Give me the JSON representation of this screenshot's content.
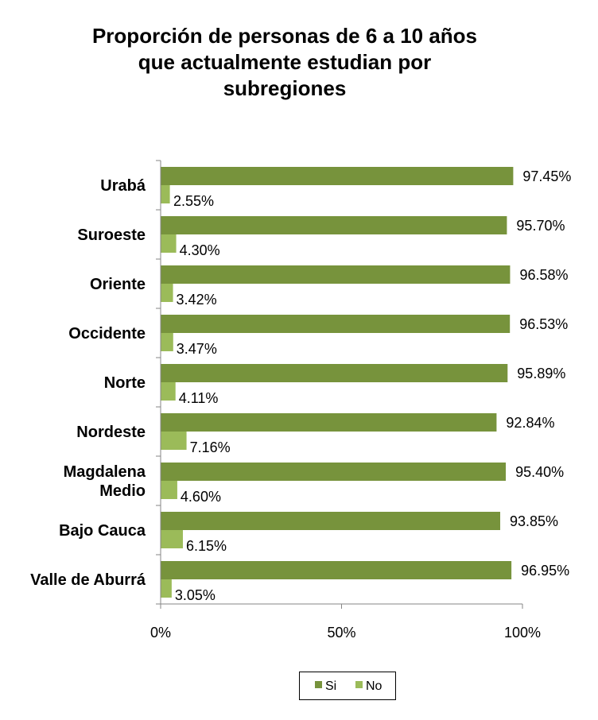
{
  "chart_data": {
    "type": "bar",
    "orientation": "horizontal",
    "title_lines": [
      "Proporción de personas de 6 a 10 años",
      "que actualmente estudian por",
      "subregiones"
    ],
    "categories": [
      [
        "Urabá"
      ],
      [
        "Suroeste"
      ],
      [
        "Oriente"
      ],
      [
        "Occidente"
      ],
      [
        "Norte"
      ],
      [
        "Nordeste"
      ],
      [
        "Magdalena",
        "Medio"
      ],
      [
        "Bajo Cauca"
      ],
      [
        "Valle de Aburrá"
      ]
    ],
    "series": [
      {
        "name": "Si",
        "color": "#77933C",
        "values": [
          97.45,
          95.7,
          96.58,
          96.53,
          95.89,
          92.84,
          95.4,
          93.85,
          96.95
        ],
        "labels": [
          "97.45%",
          "95.70%",
          "96.58%",
          "96.53%",
          "95.89%",
          "92.84%",
          "95.40%",
          "93.85%",
          "96.95%"
        ]
      },
      {
        "name": "No",
        "color": "#9BBB59",
        "values": [
          2.55,
          4.3,
          3.42,
          3.47,
          4.11,
          7.16,
          4.6,
          6.15,
          3.05
        ],
        "labels": [
          "2.55%",
          "4.30%",
          "3.42%",
          "3.47%",
          "4.11%",
          "7.16%",
          "4.60%",
          "6.15%",
          "3.05%"
        ]
      }
    ],
    "x_ticks": [
      0,
      50,
      100
    ],
    "x_tick_labels": [
      "0%",
      "50%",
      "100%"
    ],
    "xlim": [
      0,
      100
    ],
    "legend_position": "bottom",
    "grid": false
  }
}
